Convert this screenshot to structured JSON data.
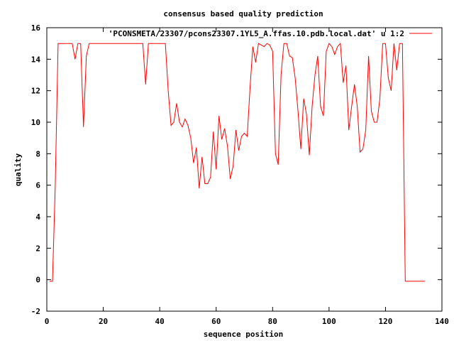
{
  "chart_data": {
    "type": "line",
    "title": "consensus based quality prediction",
    "xlabel": "sequence position",
    "ylabel": "quality",
    "xlim": [
      0,
      140
    ],
    "ylim": [
      -2,
      16
    ],
    "xticks": [
      0,
      20,
      40,
      60,
      80,
      100,
      120,
      140
    ],
    "yticks": [
      -2,
      0,
      2,
      4,
      6,
      8,
      10,
      12,
      14,
      16
    ],
    "grid": false,
    "legend_position": "top-right",
    "series": [
      {
        "name": "'PCONSMETA/23307/pcons23307.1YL5_A.ffas.10.pdb.local.dat' u 1:2",
        "color": "#ff0000",
        "x": [
          1,
          2,
          3,
          4,
          5,
          6,
          7,
          8,
          9,
          10,
          11,
          12,
          13,
          14,
          15,
          16,
          17,
          18,
          19,
          20,
          21,
          22,
          23,
          24,
          25,
          26,
          27,
          28,
          29,
          30,
          31,
          32,
          33,
          34,
          35,
          36,
          37,
          38,
          39,
          40,
          41,
          42,
          43,
          44,
          45,
          46,
          47,
          48,
          49,
          50,
          51,
          52,
          53,
          54,
          55,
          56,
          57,
          58,
          59,
          60,
          61,
          62,
          63,
          64,
          65,
          66,
          67,
          68,
          69,
          70,
          71,
          72,
          73,
          74,
          75,
          76,
          77,
          78,
          79,
          80,
          81,
          82,
          83,
          84,
          85,
          86,
          87,
          88,
          89,
          90,
          91,
          92,
          93,
          94,
          95,
          96,
          97,
          98,
          99,
          100,
          101,
          102,
          103,
          104,
          105,
          106,
          107,
          108,
          109,
          110,
          111,
          112,
          113,
          114,
          115,
          116,
          117,
          118,
          119,
          120,
          121,
          122,
          123,
          124,
          125,
          126,
          127,
          128,
          129,
          130,
          131,
          132,
          133,
          134
        ],
        "y": [
          -0.1,
          -0.1,
          6,
          15,
          15,
          15,
          15,
          15,
          15,
          14,
          15,
          15,
          9.7,
          14.2,
          15,
          15,
          15,
          15,
          15,
          15,
          15,
          15,
          15,
          15,
          15,
          15,
          15,
          15,
          15,
          15,
          15,
          15,
          15,
          15,
          12.4,
          15,
          15,
          15,
          15,
          15,
          15,
          15,
          12,
          9.8,
          10,
          11.2,
          10,
          9.7,
          10.2,
          9.8,
          9,
          7.4,
          8.4,
          5.8,
          7.8,
          6.1,
          6.1,
          6.5,
          9.4,
          7,
          10.4,
          8.9,
          9.6,
          8.5,
          6.4,
          7.2,
          9.5,
          8.2,
          9.1,
          9.3,
          9.1,
          12.2,
          14.8,
          13.8,
          15,
          14.9,
          14.8,
          15,
          14.9,
          14.5,
          8,
          7.3,
          13,
          15,
          15,
          14.2,
          14.1,
          12.8,
          10.7,
          8.3,
          11.5,
          10.5,
          7.9,
          11,
          13,
          14.2,
          11,
          10.4,
          14.5,
          15,
          14.8,
          14.3,
          14.8,
          15,
          12.5,
          13.6,
          9.5,
          11,
          12.4,
          11,
          8.1,
          8.3,
          9.5,
          14.2,
          10.7,
          10,
          10,
          11.5,
          15,
          15,
          12.8,
          12,
          15,
          13.3,
          15,
          15,
          -0.1,
          -0.1,
          -0.1,
          -0.1,
          -0.1,
          -0.1,
          -0.1,
          -0.1
        ]
      }
    ]
  }
}
